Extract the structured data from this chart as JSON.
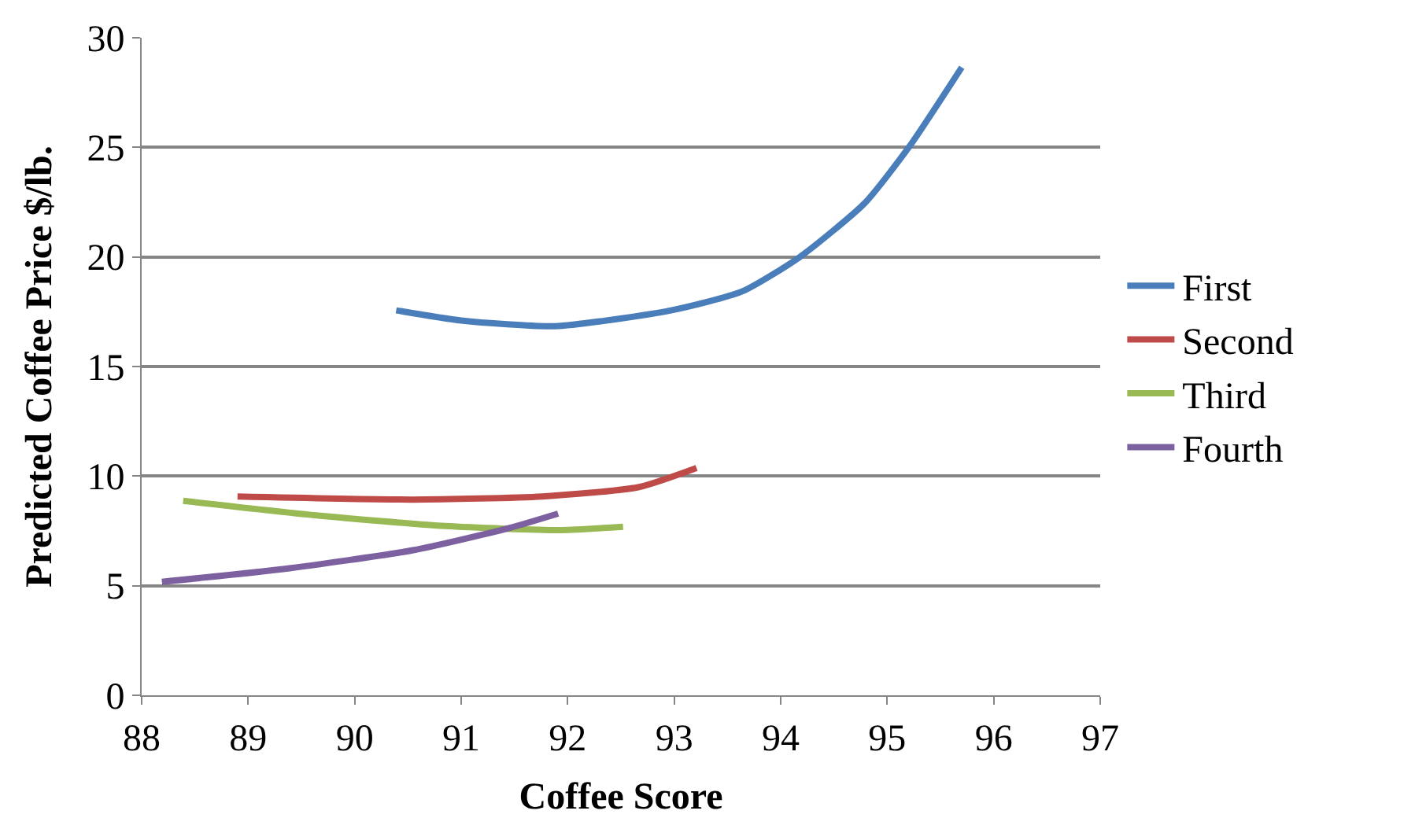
{
  "chart_data": {
    "type": "line",
    "xlabel": "Coffee Score",
    "ylabel": "Predicted Coffee Price $/lb.",
    "xlim": [
      88,
      97
    ],
    "xticks": [
      88,
      89,
      90,
      91,
      92,
      93,
      94,
      95,
      96,
      97
    ],
    "ylim": [
      0,
      30
    ],
    "yticks": [
      0,
      5,
      10,
      15,
      20,
      25,
      30
    ],
    "grid": "y",
    "legend": "right",
    "marker": "none",
    "line_style": "solid",
    "series": [
      {
        "name": "First",
        "color": "#4a7ebb",
        "x": [
          90.39,
          91.0,
          91.88,
          92.97,
          93.64,
          94.18,
          94.79,
          95.21,
          95.7
        ],
        "values": [
          17.56,
          17.1,
          16.84,
          17.56,
          18.43,
          20.0,
          22.46,
          25.05,
          28.65
        ]
      },
      {
        "name": "Second",
        "color": "#be4b48",
        "x": [
          88.9,
          90.55,
          91.76,
          92.67,
          93.21
        ],
        "values": [
          9.07,
          8.93,
          9.07,
          9.5,
          10.37
        ]
      },
      {
        "name": "Third",
        "color": "#98b954",
        "x": [
          88.39,
          89.64,
          90.85,
          91.94,
          92.52
        ],
        "values": [
          8.87,
          8.21,
          7.72,
          7.54,
          7.69
        ]
      },
      {
        "name": "Fourth",
        "color": "#7d60a0",
        "x": [
          88.19,
          89.33,
          90.55,
          91.45,
          91.91
        ],
        "values": [
          5.18,
          5.76,
          6.62,
          7.63,
          8.29
        ]
      }
    ]
  }
}
